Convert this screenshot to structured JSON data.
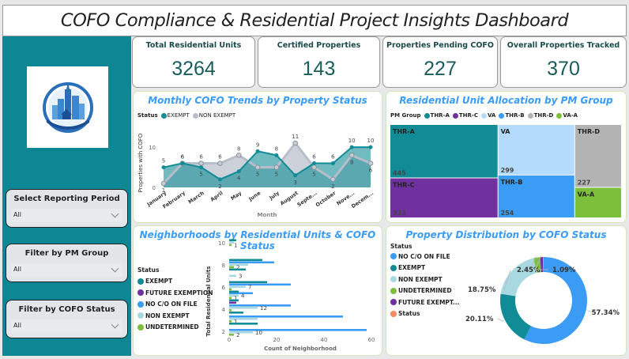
{
  "header": {
    "title": "COFO Compliance & Residential Project Insights Dashboard"
  },
  "sidebar": {
    "logo": "city-skyline-logo",
    "slicers": [
      {
        "label": "Select Reporting Period",
        "value": "All"
      },
      {
        "label": "Filter by PM Group",
        "value": "All"
      },
      {
        "label": "Filter by COFO Status",
        "value": "All"
      }
    ]
  },
  "kpis": [
    {
      "label": "Total Residential Units",
      "value": "3264"
    },
    {
      "label": "Certified Properties",
      "value": "143"
    },
    {
      "label": "Properties Pending COFO",
      "value": "227"
    },
    {
      "label": "Overall Properties Tracked",
      "value": "370"
    }
  ],
  "colors": {
    "teal": "#118c96",
    "grey": "#b8bec9",
    "blue": "#3a9cf4",
    "lightblue": "#a8d8e0",
    "purple": "#7030a0",
    "green": "#7cbf3a",
    "orange": "#f28b62",
    "titleBlue": "#3a9cf4"
  },
  "chart_data": [
    {
      "type": "area",
      "title": "Monthly COFO Trends by Property Status",
      "xlabel": "Month",
      "ylabel": "Properties with COFO",
      "legend_title": "Status",
      "legend_position": "top-left",
      "ylim": [
        0,
        12
      ],
      "yticks": [
        "0",
        "10"
      ],
      "categories": [
        "January",
        "February",
        "March",
        "April",
        "May",
        "June",
        "July",
        "August",
        "Septe...",
        "October",
        "Nove...",
        "Decem..."
      ],
      "series": [
        {
          "name": "EXEMPT",
          "values": [
            5,
            6,
            5,
            2,
            4,
            9,
            8,
            3,
            6,
            6,
            10,
            10
          ]
        },
        {
          "name": "NON EXEMPT",
          "values": [
            1,
            6,
            6,
            6,
            8,
            5,
            5,
            11,
            5,
            2,
            8,
            6
          ]
        }
      ]
    },
    {
      "type": "treemap",
      "title": "Residential Unit Allocation by PM Group",
      "legend_title": "PM Group",
      "legend_position": "top-left",
      "legend": [
        "THR-A",
        "THR-C",
        "VA",
        "THR-B",
        "THR-D",
        "VA-A"
      ],
      "items": [
        {
          "name": "THR-A",
          "value": 445,
          "label": "445"
        },
        {
          "name": "THR-C",
          "value": 333,
          "label": "333"
        },
        {
          "name": "VA",
          "value": 299,
          "label": "299"
        },
        {
          "name": "THR-B",
          "value": 254,
          "label": "254"
        },
        {
          "name": "THR-D",
          "value": 227,
          "label": "227"
        },
        {
          "name": "VA-A",
          "value": 110,
          "label": ""
        }
      ]
    },
    {
      "type": "bar",
      "orientation": "horizontal",
      "title": "Neighborhoods by Residential Units & COFO Status",
      "xlabel": "Count of Neighborhood",
      "ylabel": "Total Residential Units",
      "legend_title": "Status",
      "legend_position": "left",
      "xlim": [
        0,
        60
      ],
      "xticks": [
        "0",
        "20",
        "40",
        "60"
      ],
      "yticks": [
        "2",
        "4",
        "6",
        "8",
        "10"
      ],
      "groups": [
        {
          "units": 2,
          "bars": [
            {
              "status": "EXEMPT",
              "value": 0
            },
            {
              "status": "NO C/O ON FILE",
              "value": 58
            },
            {
              "status": "NON EXEMPT",
              "value": 10,
              "label": "10"
            },
            {
              "status": "UNDETERMINED",
              "value": 2,
              "label": "2"
            }
          ]
        },
        {
          "units": 3,
          "bars": [
            {
              "status": "NO C/O ON FILE",
              "value": 48
            },
            {
              "status": "NON EXEMPT",
              "value": 12
            },
            {
              "status": "UNDETERMINED",
              "value": 1,
              "label": "1"
            },
            {
              "status": "EXEMPT",
              "value": 12
            }
          ]
        },
        {
          "units": 4,
          "bars": [
            {
              "status": "NO C/O ON FILE",
              "value": 26
            },
            {
              "status": "NON EXEMPT",
              "value": 12,
              "label": "12"
            },
            {
              "status": "UNDETERMINED",
              "value": 1
            },
            {
              "status": "EXEMPT",
              "value": 6
            }
          ]
        },
        {
          "units": 5,
          "bars": [
            {
              "status": "NO C/O ON FILE",
              "value": 10
            },
            {
              "status": "NON EXEMPT",
              "value": 4,
              "label": "4"
            },
            {
              "status": "UNDETERMINED",
              "value": 1,
              "label": "1"
            },
            {
              "status": "EXEMPT",
              "value": 4
            },
            {
              "status": "FUTURE EXEMPTION",
              "value": 3
            }
          ]
        },
        {
          "units": 6,
          "bars": [
            {
              "status": "EXEMPT",
              "value": 16
            },
            {
              "status": "NO C/O ON FILE",
              "value": 26
            },
            {
              "status": "NON EXEMPT",
              "value": 7,
              "label": "7"
            },
            {
              "status": "UNDETERMINED",
              "value": 1
            },
            {
              "status": "EXEMPT",
              "value": 4
            }
          ]
        },
        {
          "units": 7,
          "bars": [
            {
              "status": "NON EXEMPT",
              "value": 3,
              "label": "3"
            }
          ]
        },
        {
          "units": 8,
          "bars": [
            {
              "status": "EXEMPT",
              "value": 14
            },
            {
              "status": "NO C/O ON FILE",
              "value": 19
            },
            {
              "status": "NON EXEMPT",
              "value": 8
            },
            {
              "status": "UNDETERMINED",
              "value": 2,
              "label": "2"
            },
            {
              "status": "EXEMPT",
              "value": 7
            }
          ]
        },
        {
          "units": 10,
          "bars": [
            {
              "status": "EXEMPT",
              "value": 3
            },
            {
              "status": "NON EXEMPT",
              "value": 2
            },
            {
              "status": "UNDETERMINED",
              "value": 1,
              "label": "1"
            }
          ]
        }
      ],
      "legend": [
        "EXEMPT",
        "FUTURE EXEMPTION",
        "NO C/O ON FILE",
        "NON EXEMPT",
        "UNDETERMINED"
      ]
    },
    {
      "type": "pie",
      "title": "Property Distribution by COFO Status",
      "donut": true,
      "legend_title": "Status",
      "legend_position": "left",
      "legend": [
        "NO C/O ON FILE",
        "EXEMPT",
        "NON EXEMPT",
        "UNDETERMINED",
        "FUTURE EXEMPT...",
        "Status"
      ],
      "slices": [
        {
          "name": "NO C/O ON FILE",
          "value": 57.34,
          "label": "57.34%"
        },
        {
          "name": "EXEMPT",
          "value": 20.11,
          "label": "20.11%"
        },
        {
          "name": "NON EXEMPT",
          "value": 18.75,
          "label": "18.75%"
        },
        {
          "name": "UNDETERMINED",
          "value": 2.45,
          "label": "2.45%"
        },
        {
          "name": "FUTURE EXEMPTION",
          "value": 1.09,
          "label": "1.09%"
        },
        {
          "name": "Status",
          "value": 0.26,
          "label": ""
        }
      ]
    }
  ]
}
